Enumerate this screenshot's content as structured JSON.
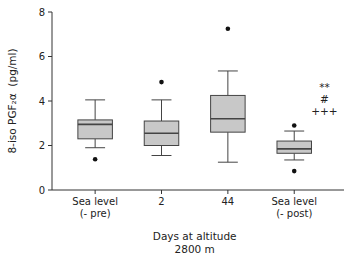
{
  "chart_data": {
    "type": "box",
    "categories": [
      "Sea level\n(- pre)",
      "2",
      "44",
      "Sea level\n(- post)"
    ],
    "xlabel": "Days at altitude\n2800 m",
    "ylabel": "8-iso PGF₂α  (pg/ml)",
    "ylim": [
      0,
      8
    ],
    "yticks": [
      0,
      2,
      4,
      6,
      8
    ],
    "grid": false,
    "color": "#c8c8c8",
    "values": [
      {
        "q1": 2.3,
        "median": 2.95,
        "q3": 3.15,
        "whislo": 1.9,
        "whishi": 4.05,
        "fliers": [
          1.38
        ]
      },
      {
        "q1": 2.0,
        "median": 2.55,
        "q3": 3.1,
        "whislo": 1.55,
        "whishi": 4.05,
        "fliers": [
          4.85
        ]
      },
      {
        "q1": 2.6,
        "median": 3.2,
        "q3": 4.25,
        "whislo": 1.25,
        "whishi": 5.35,
        "fliers": [
          7.25
        ]
      },
      {
        "q1": 1.65,
        "median": 1.85,
        "q3": 2.2,
        "whislo": 1.35,
        "whishi": 2.65,
        "fliers": [
          2.9,
          0.85
        ]
      }
    ],
    "annotations": [
      {
        "text": "**"
      },
      {
        "text": "#"
      },
      {
        "text": "+++"
      }
    ]
  }
}
